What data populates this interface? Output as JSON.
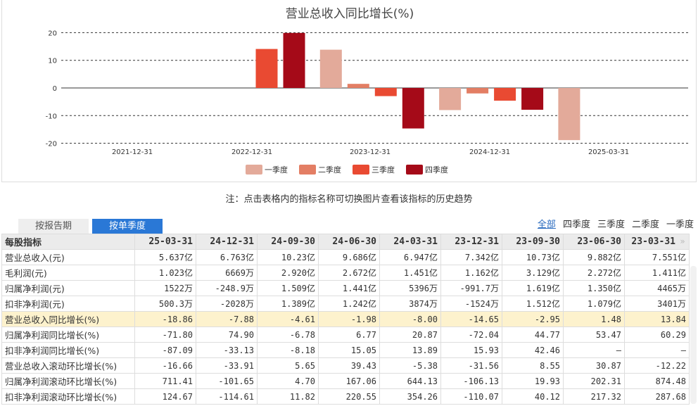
{
  "chart_data": {
    "type": "bar",
    "title": "营业总收入同比增长(%)",
    "ylim": [
      -20,
      20
    ],
    "yticks": [
      20,
      10,
      0,
      -10,
      -20
    ],
    "xtick_labels": [
      "2021-12-31",
      "2022-12-31",
      "2023-12-31",
      "2024-12-31",
      "2025-03-31"
    ],
    "grid": true,
    "legend_position": "bottom",
    "series": [
      {
        "name": "一季度",
        "color": "#e3aa9a"
      },
      {
        "name": "二季度",
        "color": "#e37e64"
      },
      {
        "name": "三季度",
        "color": "#e94a32"
      },
      {
        "name": "四季度",
        "color": "#a50a18"
      }
    ],
    "bars": [
      {
        "period": "2022-09-30",
        "quarter": 3,
        "value": 14.1
      },
      {
        "period": "2022-12-31",
        "quarter": 4,
        "value": 19.9
      },
      {
        "period": "2023-03-31",
        "quarter": 1,
        "value": 13.84
      },
      {
        "period": "2023-06-30",
        "quarter": 2,
        "value": 1.48
      },
      {
        "period": "2023-09-30",
        "quarter": 3,
        "value": -2.95
      },
      {
        "period": "2023-12-31",
        "quarter": 4,
        "value": -14.65
      },
      {
        "period": "2024-03-31",
        "quarter": 1,
        "value": -8.0
      },
      {
        "period": "2024-06-30",
        "quarter": 2,
        "value": -1.98
      },
      {
        "period": "2024-09-30",
        "quarter": 3,
        "value": -4.61
      },
      {
        "period": "2024-12-31",
        "quarter": 4,
        "value": -7.88
      },
      {
        "period": "2025-03-31",
        "quarter": 1,
        "value": -18.86
      }
    ]
  },
  "note": "注：点击表格内的指标名称可切换图片查看该指标的历史趋势",
  "tabs": [
    "按报告期",
    "按单季度"
  ],
  "active_tab": 1,
  "filters": [
    "全部",
    "四季度",
    "三季度",
    "二季度",
    "一季度"
  ],
  "table": {
    "headers": [
      "每股指标",
      "25-03-31",
      "24-12-31",
      "24-09-30",
      "24-06-30",
      "24-03-31",
      "23-12-31",
      "23-09-30",
      "23-06-30",
      "23-03-31"
    ],
    "highlight_row": 4,
    "rows": [
      [
        "营业总收入(元)",
        "5.637亿",
        "6.763亿",
        "10.23亿",
        "9.686亿",
        "6.947亿",
        "7.342亿",
        "10.73亿",
        "9.882亿",
        "7.551亿"
      ],
      [
        "毛利润(元)",
        "1.023亿",
        "6669万",
        "2.920亿",
        "2.672亿",
        "1.451亿",
        "1.162亿",
        "3.129亿",
        "2.272亿",
        "1.411亿"
      ],
      [
        "归属净利润(元)",
        "1522万",
        "-248.9万",
        "1.509亿",
        "1.441亿",
        "5396万",
        "-991.7万",
        "1.619亿",
        "1.350亿",
        "4465万"
      ],
      [
        "扣非净利润(元)",
        "500.3万",
        "-2028万",
        "1.389亿",
        "1.242亿",
        "3874万",
        "-1524万",
        "1.512亿",
        "1.079亿",
        "3401万"
      ],
      [
        "营业总收入同比增长(%)",
        "-18.86",
        "-7.88",
        "-4.61",
        "-1.98",
        "-8.00",
        "-14.65",
        "-2.95",
        "1.48",
        "13.84"
      ],
      [
        "归属净利润同比增长(%)",
        "-71.80",
        "74.90",
        "-6.78",
        "6.77",
        "20.87",
        "-72.04",
        "44.77",
        "53.47",
        "60.29"
      ],
      [
        "扣非净利润同比增长(%)",
        "-87.09",
        "-33.13",
        "-8.18",
        "15.05",
        "13.89",
        "15.93",
        "42.46",
        "—",
        "—"
      ],
      [
        "营业总收入滚动环比增长(%)",
        "-16.66",
        "-33.91",
        "5.65",
        "39.43",
        "-5.38",
        "-31.56",
        "8.55",
        "30.87",
        "-12.22"
      ],
      [
        "归属净利润滚动环比增长(%)",
        "711.41",
        "-101.65",
        "4.70",
        "167.06",
        "644.13",
        "-106.13",
        "19.93",
        "202.31",
        "874.48"
      ],
      [
        "扣非净利润滚动环比增长(%)",
        "124.67",
        "-114.61",
        "11.82",
        "220.55",
        "354.26",
        "-110.07",
        "40.12",
        "217.32",
        "287.68"
      ]
    ]
  }
}
